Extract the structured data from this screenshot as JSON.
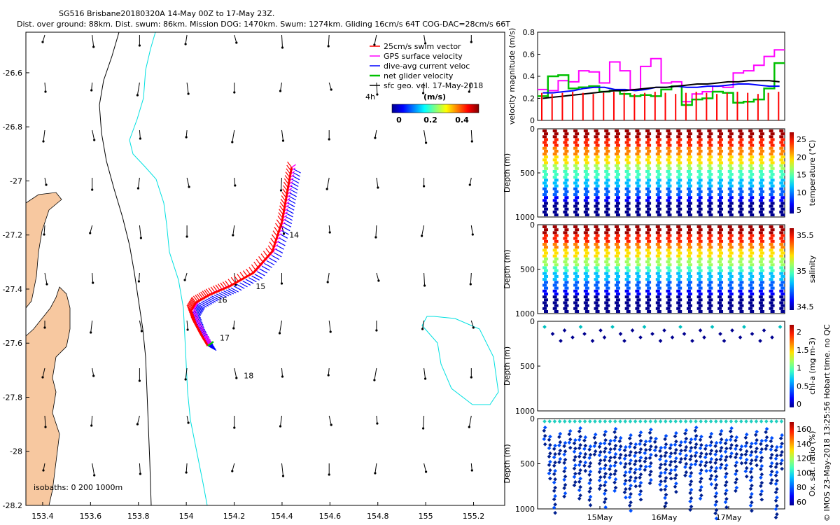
{
  "title_line1": "SG516 Brisbane20180320A 14-May 00Z to 17-May 23Z.",
  "title_line2": "Dist. over ground: 88km. Dist. swum: 86km. Mission DOG: 1470km. Swum: 1274km. Gliding 16cm/s 64T COG-DAC=28cm/s 66T",
  "stamp": "© IMOS 23-May-2018 13:25:56 Hobart time. no QC",
  "colors": {
    "coast_fill": "#f7c8a0",
    "isobath_200": "#000000",
    "isobath_1000": "#00e0e0",
    "swim": "#ff0000",
    "gps": "#ff00ff",
    "dac": "#0000ff",
    "net": "#00c000",
    "geo": "#000000"
  },
  "map": {
    "xticks": [
      "153.4",
      "153.6",
      "153.8",
      "154",
      "154.2",
      "154.4",
      "154.6",
      "154.8",
      "155",
      "155.2"
    ],
    "yticks": [
      "-26.6",
      "-26.8",
      "-27",
      "-27.2",
      "-27.4",
      "-27.6",
      "-27.8",
      "-28",
      "-28.2"
    ],
    "xlim": [
      153.33,
      155.33
    ],
    "ylim": [
      -28.2,
      -26.45
    ],
    "legend": [
      "25cm/s swim vector",
      "GPS surface velocity",
      "dive-avg current veloc",
      "net glider velocity",
      "sfc geo. vel. 17-May-2018"
    ],
    "legend_extra": "4h",
    "colorbar_title": "(m/s)",
    "colorbar_ticks": [
      "0",
      "0.2",
      "0.4"
    ],
    "isobath_label": "isobaths: 0   200  1000m",
    "day_labels": [
      {
        "text": "14",
        "lon": 154.43,
        "lat": -27.21
      },
      {
        "text": "15",
        "lon": 154.29,
        "lat": -27.4
      },
      {
        "text": "16",
        "lon": 154.13,
        "lat": -27.45
      },
      {
        "text": "17",
        "lon": 154.14,
        "lat": -27.59
      },
      {
        "text": "18",
        "lon": 154.24,
        "lat": -27.73
      }
    ],
    "track": [
      [
        154.44,
        -26.95
      ],
      [
        154.42,
        -27.05
      ],
      [
        154.4,
        -27.15
      ],
      [
        154.36,
        -27.26
      ],
      [
        154.28,
        -27.34
      ],
      [
        154.18,
        -27.39
      ],
      [
        154.1,
        -27.42
      ],
      [
        154.04,
        -27.45
      ],
      [
        154.02,
        -27.48
      ],
      [
        154.04,
        -27.53
      ],
      [
        154.07,
        -27.58
      ],
      [
        154.09,
        -27.61
      ]
    ]
  },
  "chart_data": [
    {
      "type": "line",
      "ylabel": "velocity magnitude (m/s)",
      "ylim": [
        0,
        0.8
      ],
      "yticks": [
        "0",
        "0.2",
        "0.4",
        "0.6",
        "0.8"
      ],
      "series": [
        {
          "name": "GPS surface velocity",
          "values": [
            0.28,
            0.27,
            0.36,
            0.35,
            0.45,
            0.44,
            0.34,
            0.53,
            0.45,
            0.28,
            0.49,
            0.56,
            0.34,
            0.35,
            0.17,
            0.24,
            0.26,
            0.31,
            0.3,
            0.43,
            0.45,
            0.5,
            0.58,
            0.64
          ]
        },
        {
          "name": "net glider velocity",
          "values": [
            0.22,
            0.4,
            0.41,
            0.29,
            0.3,
            0.31,
            0.26,
            0.27,
            0.24,
            0.22,
            0.23,
            0.22,
            0.28,
            0.31,
            0.14,
            0.19,
            0.2,
            0.26,
            0.25,
            0.16,
            0.17,
            0.19,
            0.29,
            0.52
          ]
        },
        {
          "name": "dive-avg current velocity",
          "values": [
            0.25,
            0.25,
            0.26,
            0.27,
            0.29,
            0.3,
            0.3,
            0.28,
            0.28,
            0.27,
            0.28,
            0.3,
            0.3,
            0.31,
            0.3,
            0.3,
            0.31,
            0.31,
            0.32,
            0.33,
            0.33,
            0.32,
            0.31,
            0.31
          ]
        },
        {
          "name": "sfc geo. vel.",
          "values": [
            0.2,
            0.21,
            0.22,
            0.23,
            0.24,
            0.25,
            0.26,
            0.27,
            0.27,
            0.28,
            0.29,
            0.3,
            0.3,
            0.31,
            0.32,
            0.33,
            0.33,
            0.34,
            0.35,
            0.35,
            0.36,
            0.36,
            0.36,
            0.35
          ]
        },
        {
          "name": "25cm/s swim vector",
          "values": [
            0.25,
            0.24,
            0.25,
            0.26,
            0.25,
            0.24,
            0.25,
            0.26,
            0.25,
            0.24,
            0.25,
            0.26,
            0.25,
            0.24,
            0.25,
            0.26,
            0.25,
            0.24,
            0.25,
            0.26,
            0.25,
            0.24,
            0.25,
            0.26
          ]
        }
      ]
    },
    {
      "type": "scatter",
      "ylabel": "Depth (m)",
      "yticks": [
        "0",
        "500",
        "1000"
      ],
      "cbar_label": "temperature (°C)",
      "cbar_ticks": [
        "5",
        "10",
        "15",
        "20",
        "25"
      ],
      "dives": 24
    },
    {
      "type": "scatter",
      "ylabel": "Depth (m)",
      "yticks": [
        "0",
        "500",
        "1000"
      ],
      "cbar_label": "salinity",
      "cbar_ticks": [
        "34.5",
        "35",
        "35.5"
      ],
      "dives": 24
    },
    {
      "type": "scatter",
      "ylabel": "Depth (m)",
      "yticks": [
        "0",
        "500",
        "1000"
      ],
      "cbar_label": "chl-a (mg m-3)",
      "cbar_ticks": [
        "0",
        "0.5",
        "1",
        "1.5",
        "2"
      ]
    },
    {
      "type": "scatter",
      "ylabel": "Depth (m)",
      "yticks": [
        "0",
        "500",
        "1000"
      ],
      "cbar_label": "Ox. sat. ratio (%)",
      "cbar_ticks": [
        "60",
        "80",
        "100",
        "120",
        "140",
        "160"
      ],
      "xticks": [
        "15May",
        "16May",
        "17May"
      ]
    }
  ]
}
